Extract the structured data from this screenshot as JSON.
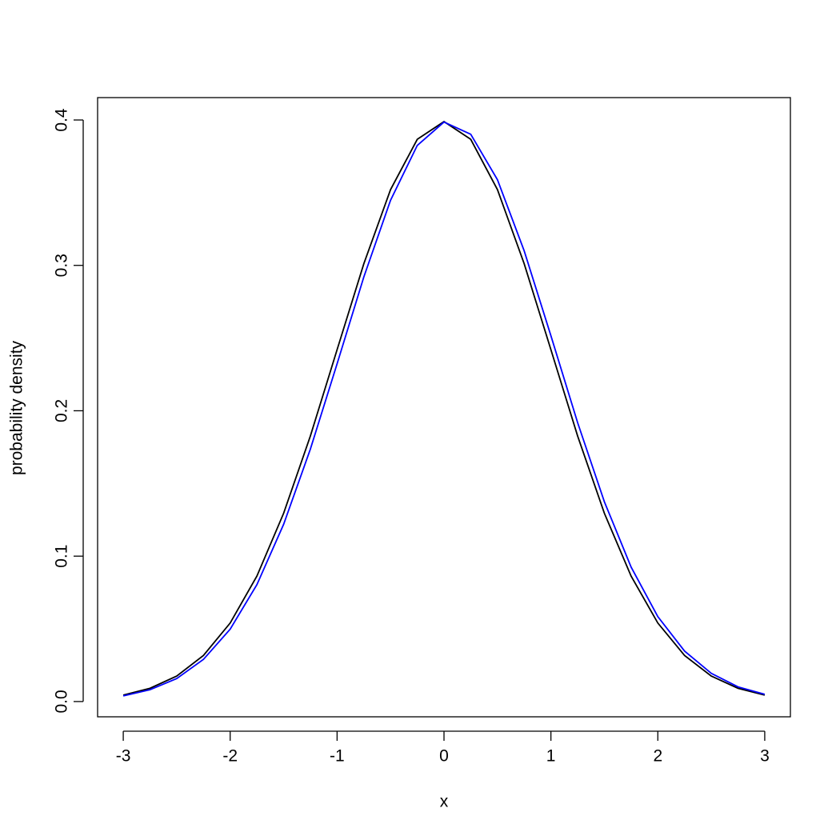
{
  "chart_data": {
    "type": "line",
    "x_label": "x",
    "y_label": "probability density",
    "x": [
      -3,
      -2.75,
      -2.5,
      -2.25,
      -2,
      -1.75,
      -1.5,
      -1.25,
      -1,
      -0.75,
      -0.5,
      -0.25,
      0,
      0.25,
      0.5,
      0.75,
      1,
      1.25,
      1.5,
      1.75,
      2,
      2.25,
      2.5,
      2.75,
      3
    ],
    "series": [
      {
        "color": "#000000",
        "values": [
          0.0044,
          0.0091,
          0.0175,
          0.0317,
          0.054,
          0.0863,
          0.1295,
          0.1826,
          0.242,
          0.3011,
          0.3521,
          0.3867,
          0.3989,
          0.3867,
          0.3521,
          0.3011,
          0.242,
          0.1826,
          0.1295,
          0.0863,
          0.054,
          0.0317,
          0.0175,
          0.0091,
          0.0044
        ]
      },
      {
        "color": "#0000ff",
        "values": [
          0.0039,
          0.0081,
          0.0158,
          0.029,
          0.0498,
          0.0804,
          0.1219,
          0.1736,
          0.2323,
          0.292,
          0.3448,
          0.3825,
          0.3986,
          0.3902,
          0.3589,
          0.31,
          0.2516,
          0.1918,
          0.1374,
          0.0925,
          0.0584,
          0.0347,
          0.0194,
          0.0101,
          0.005
        ]
      }
    ],
    "xlim": [
      -3.24,
      3.24
    ],
    "xticks": [
      -3,
      -2,
      -1,
      0,
      1,
      2,
      3
    ],
    "ylim": [
      -0.0105,
      0.4154
    ],
    "yticks": [
      {
        "value": 0,
        "label": "0.0"
      },
      0.1,
      0.2,
      0.3,
      0.4
    ]
  }
}
